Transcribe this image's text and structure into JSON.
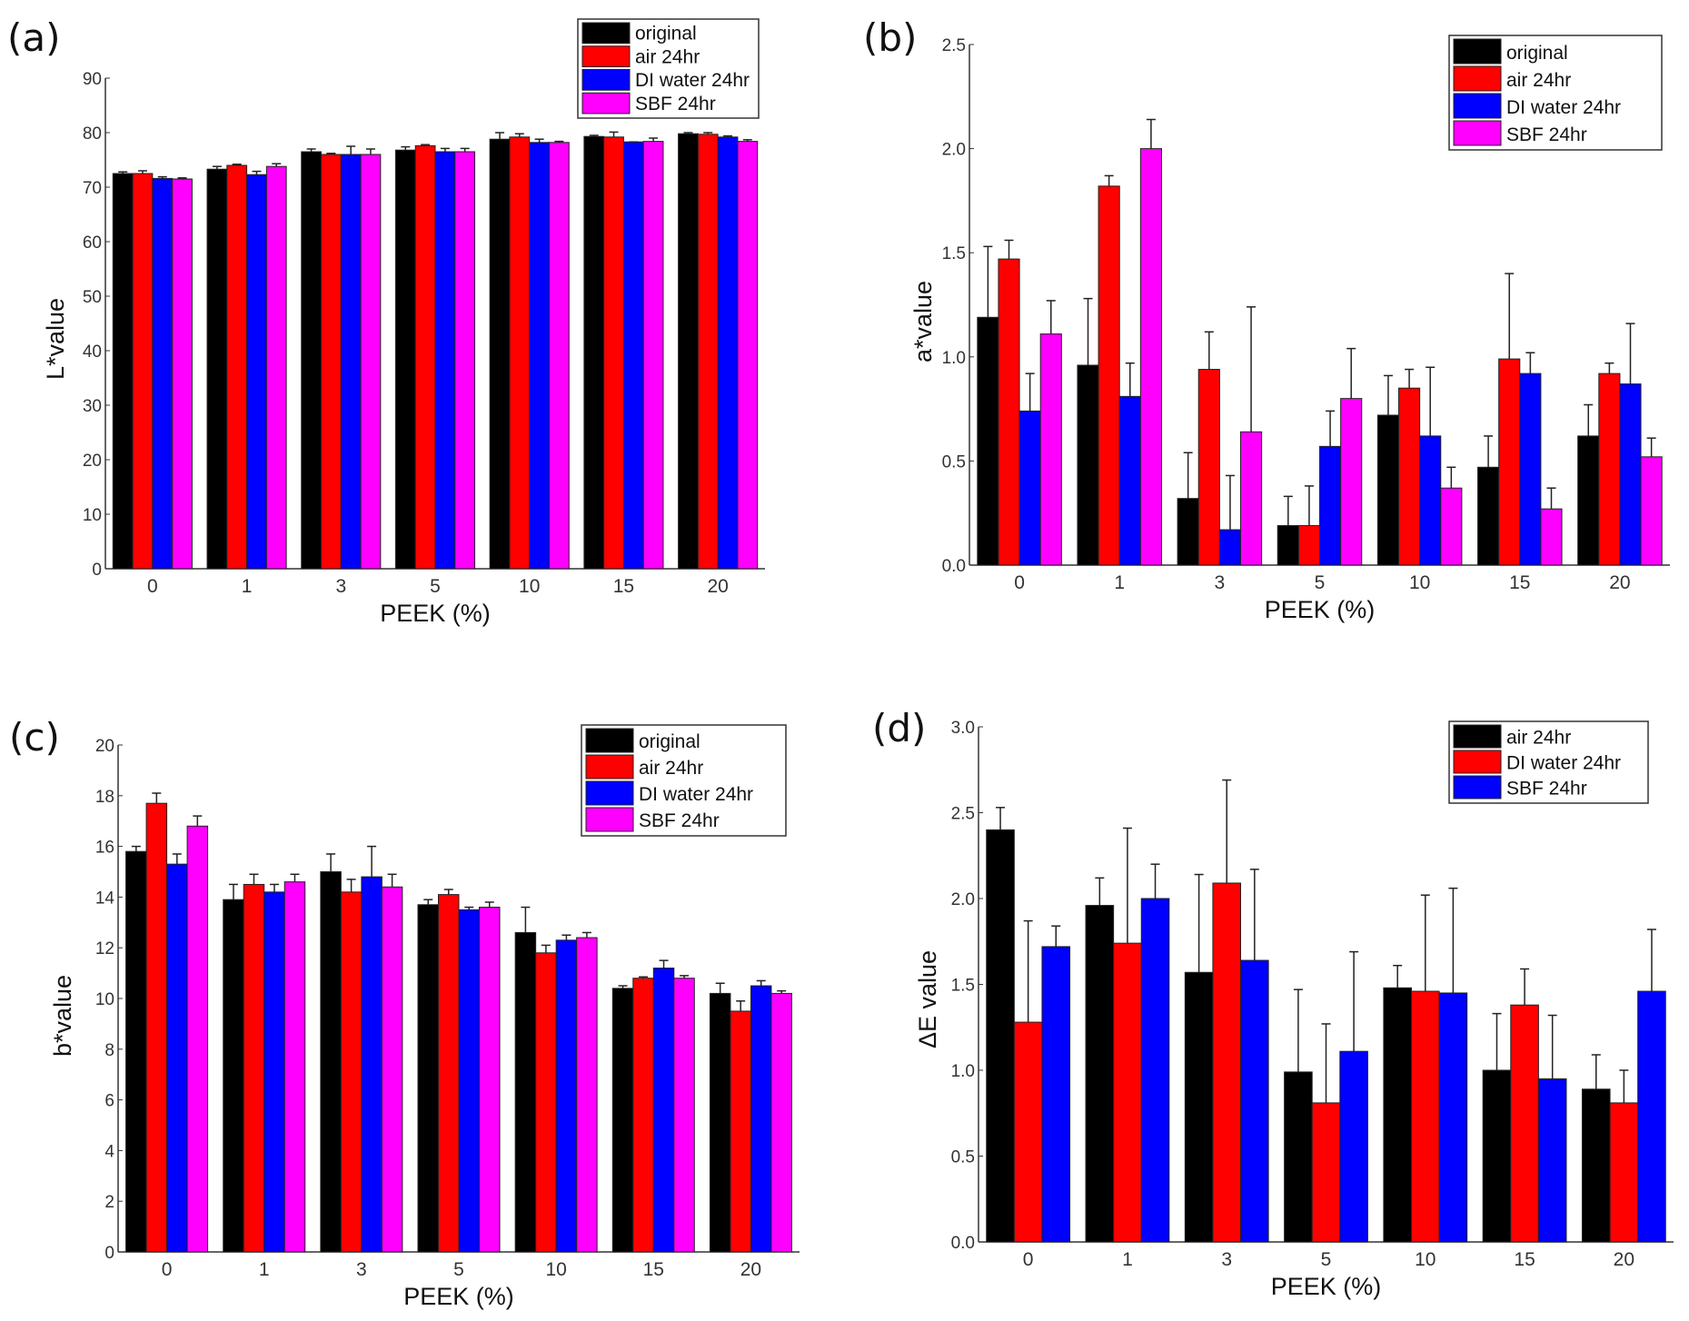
{
  "colors": {
    "original": "#000000",
    "air": "#ff0000",
    "dw": "#0000ff",
    "sbf": "#ff00ff"
  },
  "chart_data": [
    {
      "panel": "(a)",
      "type": "bar",
      "xlabel": "PEEK (%)",
      "ylabel": "L*value",
      "ylim": [
        0,
        90
      ],
      "ytick_step": 10,
      "ytick_decimals": 0,
      "legend": "top-right",
      "categories": [
        "0",
        "1",
        "3",
        "5",
        "10",
        "15",
        "20"
      ],
      "series": [
        {
          "name": "original",
          "color": "#000000",
          "values": [
            72.5,
            73.3,
            76.5,
            76.8,
            78.8,
            79.3,
            79.8
          ],
          "errors": [
            0.3,
            0.5,
            0.5,
            0.6,
            1.2,
            0.2,
            0.2
          ]
        },
        {
          "name": "air 24hr",
          "color": "#ff0000",
          "values": [
            72.5,
            74.0,
            76.0,
            77.6,
            79.2,
            79.2,
            79.7
          ],
          "errors": [
            0.5,
            0.2,
            0.2,
            0.2,
            0.6,
            0.9,
            0.3
          ]
        },
        {
          "name": "DI water 24hr",
          "color": "#0000ff",
          "values": [
            71.6,
            72.3,
            76.0,
            76.5,
            78.2,
            78.3,
            79.2
          ],
          "errors": [
            0.3,
            0.6,
            1.5,
            0.6,
            0.6,
            0.0,
            0.2
          ]
        },
        {
          "name": "SBF 24hr",
          "color": "#ff00ff",
          "values": [
            71.5,
            73.8,
            76.0,
            76.5,
            78.2,
            78.4,
            78.4
          ],
          "errors": [
            0.2,
            0.5,
            1.0,
            0.6,
            0.2,
            0.6,
            0.3
          ]
        }
      ]
    },
    {
      "panel": "(b)",
      "type": "bar",
      "xlabel": "PEEK (%)",
      "ylabel": "a*value",
      "ylim": [
        0,
        2.5
      ],
      "ytick_step": 0.5,
      "ytick_decimals": 1,
      "legend": "top-right",
      "categories": [
        "0",
        "1",
        "3",
        "5",
        "10",
        "15",
        "20"
      ],
      "series": [
        {
          "name": "original",
          "color": "#000000",
          "values": [
            1.19,
            0.96,
            0.32,
            0.19,
            0.72,
            0.47,
            0.62
          ],
          "errors": [
            0.34,
            0.32,
            0.22,
            0.14,
            0.19,
            0.15,
            0.15
          ]
        },
        {
          "name": "air 24hr",
          "color": "#ff0000",
          "values": [
            1.47,
            1.82,
            0.94,
            0.19,
            0.85,
            0.99,
            0.92
          ],
          "errors": [
            0.09,
            0.05,
            0.18,
            0.19,
            0.09,
            0.41,
            0.05
          ]
        },
        {
          "name": "DI water 24hr",
          "color": "#0000ff",
          "values": [
            0.74,
            0.81,
            0.17,
            0.57,
            0.62,
            0.92,
            0.87
          ],
          "errors": [
            0.18,
            0.16,
            0.26,
            0.17,
            0.33,
            0.1,
            0.29
          ]
        },
        {
          "name": "SBF 24hr",
          "color": "#ff00ff",
          "values": [
            1.11,
            2.0,
            0.64,
            0.8,
            0.37,
            0.27,
            0.52
          ],
          "errors": [
            0.16,
            0.14,
            0.6,
            0.24,
            0.1,
            0.1,
            0.09
          ]
        }
      ]
    },
    {
      "panel": "(c)",
      "type": "bar",
      "xlabel": "PEEK (%)",
      "ylabel": "b*value",
      "ylim": [
        0,
        20
      ],
      "ytick_step": 2,
      "ytick_decimals": 0,
      "legend": "top-right",
      "categories": [
        "0",
        "1",
        "3",
        "5",
        "10",
        "15",
        "20"
      ],
      "series": [
        {
          "name": "original",
          "color": "#000000",
          "values": [
            15.8,
            13.9,
            15.0,
            13.7,
            12.6,
            10.4,
            10.2
          ],
          "errors": [
            0.2,
            0.6,
            0.7,
            0.2,
            1.0,
            0.1,
            0.4
          ]
        },
        {
          "name": "air 24hr",
          "color": "#ff0000",
          "values": [
            17.7,
            14.5,
            14.2,
            14.1,
            11.8,
            10.8,
            9.5
          ],
          "errors": [
            0.4,
            0.4,
            0.5,
            0.2,
            0.3,
            0.05,
            0.4
          ]
        },
        {
          "name": "DI water 24hr",
          "color": "#0000ff",
          "values": [
            15.3,
            14.2,
            14.8,
            13.5,
            12.3,
            11.2,
            10.5
          ],
          "errors": [
            0.4,
            0.3,
            1.2,
            0.1,
            0.2,
            0.3,
            0.2
          ]
        },
        {
          "name": "SBF 24hr",
          "color": "#ff00ff",
          "values": [
            16.8,
            14.6,
            14.4,
            13.6,
            12.4,
            10.8,
            10.2
          ],
          "errors": [
            0.4,
            0.3,
            0.5,
            0.2,
            0.2,
            0.1,
            0.1
          ]
        }
      ]
    },
    {
      "panel": "(d)",
      "type": "bar",
      "xlabel": "PEEK (%)",
      "ylabel": "ΔE value",
      "ylim": [
        0,
        3.0
      ],
      "ytick_step": 0.5,
      "ytick_decimals": 1,
      "legend": "top-right",
      "categories": [
        "0",
        "1",
        "3",
        "5",
        "10",
        "15",
        "20"
      ],
      "series": [
        {
          "name": "air 24hr",
          "color": "#000000",
          "values": [
            2.4,
            1.96,
            1.57,
            0.99,
            1.48,
            1.0,
            0.89
          ],
          "errors": [
            0.13,
            0.16,
            0.57,
            0.48,
            0.13,
            0.33,
            0.2
          ]
        },
        {
          "name": "DI water 24hr",
          "color": "#ff0000",
          "values": [
            1.28,
            1.74,
            2.09,
            0.81,
            1.46,
            1.38,
            0.81
          ],
          "errors": [
            0.59,
            0.67,
            0.6,
            0.46,
            0.56,
            0.21,
            0.19
          ]
        },
        {
          "name": "SBF 24hr",
          "color": "#0000ff",
          "values": [
            1.72,
            2.0,
            1.64,
            1.11,
            1.45,
            0.95,
            1.46
          ],
          "errors": [
            0.12,
            0.2,
            0.53,
            0.58,
            0.61,
            0.37,
            0.36
          ]
        }
      ]
    }
  ]
}
